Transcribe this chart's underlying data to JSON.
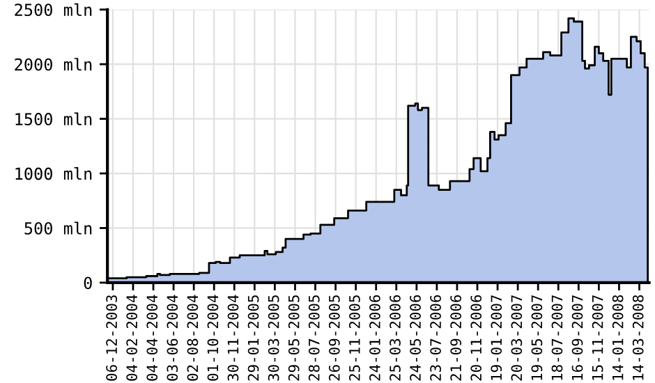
{
  "chart_data": {
    "type": "area",
    "color": "#b4c6ec",
    "x": [
      "2003-11-20",
      "2004-01-16",
      "2004-03-14",
      "2004-04-16",
      "2004-04-24",
      "2004-05-23",
      "2004-07-16",
      "2004-08-18",
      "2004-09-16",
      "2004-10-06",
      "2004-10-19",
      "2004-11-17",
      "2004-12-16",
      "2005-02-20",
      "2005-02-28",
      "2005-03-08",
      "2005-04-02",
      "2005-04-22",
      "2005-05-01",
      "2005-06-03",
      "2005-06-23",
      "2005-07-14",
      "2005-08-12",
      "2005-09-22",
      "2005-11-02",
      "2005-12-26",
      "2006-03-19",
      "2006-04-08",
      "2006-04-25",
      "2006-04-29",
      "2006-05-20",
      "2006-05-28",
      "2006-06-09",
      "2006-06-28",
      "2006-07-29",
      "2006-08-31",
      "2006-10-28",
      "2006-11-09",
      "2006-11-30",
      "2006-12-20",
      "2006-12-28",
      "2007-01-10",
      "2007-01-22",
      "2007-02-12",
      "2007-02-28",
      "2007-03-25",
      "2007-04-15",
      "2007-06-03",
      "2007-06-24",
      "2007-07-27",
      "2007-08-17",
      "2007-09-02",
      "2007-09-27",
      "2007-10-05",
      "2007-10-17",
      "2007-11-03",
      "2007-11-15",
      "2007-11-28",
      "2007-12-14",
      "2007-12-22",
      "2008-01-24",
      "2008-02-06",
      "2008-02-18",
      "2008-03-06",
      "2008-03-18",
      "2008-03-30",
      "2008-04-08"
    ],
    "values": [
      40,
      50,
      60,
      80,
      70,
      80,
      80,
      90,
      180,
      190,
      180,
      230,
      250,
      250,
      290,
      260,
      280,
      320,
      400,
      400,
      440,
      450,
      530,
      590,
      660,
      740,
      850,
      800,
      890,
      1620,
      1640,
      1580,
      1600,
      890,
      850,
      930,
      1040,
      1140,
      1020,
      1140,
      1380,
      1310,
      1350,
      1460,
      1900,
      1970,
      2050,
      2110,
      2080,
      2290,
      2420,
      2390,
      2030,
      1960,
      1990,
      2160,
      2100,
      2030,
      1720,
      2050,
      2050,
      1970,
      2250,
      2210,
      2100,
      1970,
      1950
    ],
    "xlim": [
      "2003-11-20",
      "2008-04-12"
    ],
    "xticks": [
      {
        "value": "2003-12-06",
        "label": "06-12-2003"
      },
      {
        "value": "2004-02-04",
        "label": "04-02-2004"
      },
      {
        "value": "2004-04-04",
        "label": "04-04-2004"
      },
      {
        "value": "2004-06-03",
        "label": "03-06-2004"
      },
      {
        "value": "2004-08-02",
        "label": "02-08-2004"
      },
      {
        "value": "2004-10-01",
        "label": "01-10-2004"
      },
      {
        "value": "2004-11-30",
        "label": "30-11-2004"
      },
      {
        "value": "2005-01-29",
        "label": "29-01-2005"
      },
      {
        "value": "2005-03-30",
        "label": "30-03-2005"
      },
      {
        "value": "2005-05-29",
        "label": "29-05-2005"
      },
      {
        "value": "2005-07-28",
        "label": "28-07-2005"
      },
      {
        "value": "2005-09-26",
        "label": "26-09-2005"
      },
      {
        "value": "2005-11-25",
        "label": "25-11-2005"
      },
      {
        "value": "2006-01-24",
        "label": "24-01-2006"
      },
      {
        "value": "2006-03-25",
        "label": "25-03-2006"
      },
      {
        "value": "2006-05-24",
        "label": "24-05-2006"
      },
      {
        "value": "2006-07-23",
        "label": "23-07-2006"
      },
      {
        "value": "2006-09-21",
        "label": "21-09-2006"
      },
      {
        "value": "2006-11-20",
        "label": "20-11-2006"
      },
      {
        "value": "2007-01-19",
        "label": "19-01-2007"
      },
      {
        "value": "2007-03-20",
        "label": "20-03-2007"
      },
      {
        "value": "2007-05-19",
        "label": "19-05-2007"
      },
      {
        "value": "2007-07-18",
        "label": "18-07-2007"
      },
      {
        "value": "2007-09-16",
        "label": "16-09-2007"
      },
      {
        "value": "2007-11-15",
        "label": "15-11-2007"
      },
      {
        "value": "2008-01-14",
        "label": "14-01-2008"
      },
      {
        "value": "2008-03-14",
        "label": "14-03-2008"
      }
    ],
    "ylim": [
      0,
      2500
    ],
    "yticks": [
      0,
      {
        "value": 500,
        "label": "500 mln"
      },
      {
        "value": 1000,
        "label": "1000 mln"
      },
      {
        "value": 1500,
        "label": "1500 mln"
      },
      {
        "value": 2000,
        "label": "2000 mln"
      },
      {
        "value": 2500,
        "label": "2500 mln"
      }
    ],
    "grid": true
  }
}
